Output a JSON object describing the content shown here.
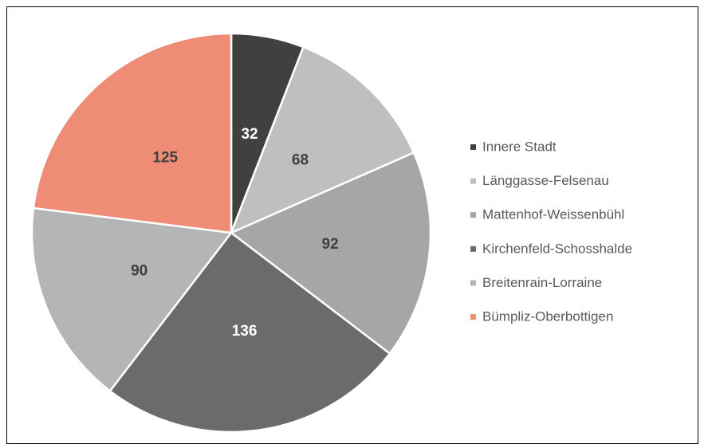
{
  "chart_data": {
    "type": "pie",
    "categories": [
      "Innere Stadt",
      "Länggasse-Felsenau",
      "Mattenhof-Weissenbühl",
      "Kirchenfeld-Schosshalde",
      "Breitenrain-Lorraine",
      "Bümpliz-Oberbottigen"
    ],
    "values": [
      32,
      68,
      92,
      136,
      90,
      125
    ],
    "colors": [
      "#404040",
      "#bfbfbf",
      "#a6a6a6",
      "#6b6b69",
      "#b5b5b8",
      "#ef8c76"
    ],
    "legend": "right"
  }
}
